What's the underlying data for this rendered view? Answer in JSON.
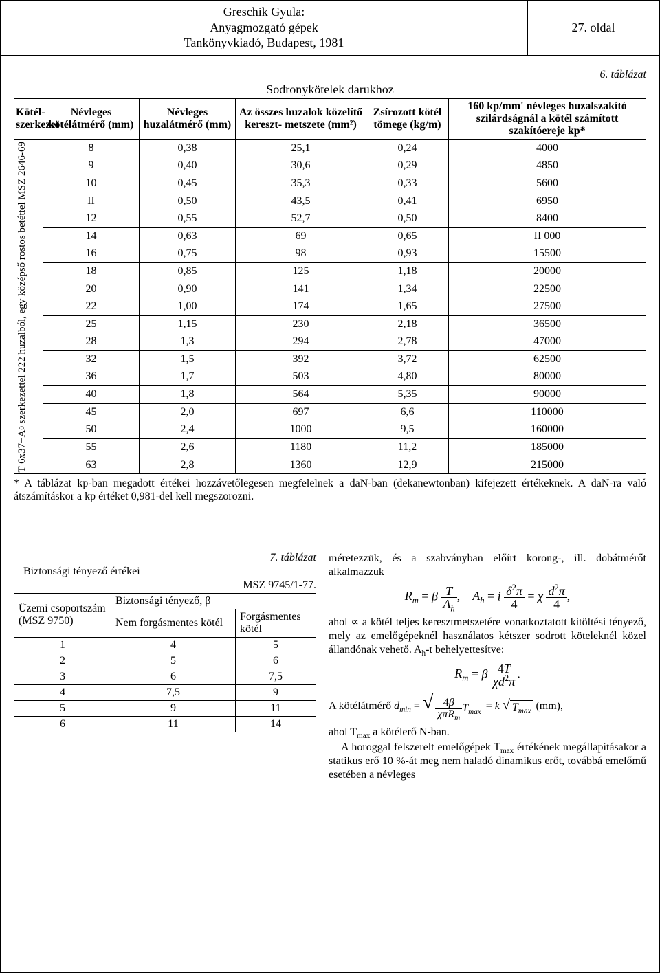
{
  "header": {
    "line1": "Greschik Gyula:",
    "line2": "Anyagmozgató gépek",
    "line3": "Tankönyvkiadó, Budapest, 1981",
    "page": "27. oldal"
  },
  "table6": {
    "label": "6. táblázat",
    "caption": "Sodronykötelek darukhoz",
    "cols": {
      "c0": "Kötél-szerkezet",
      "c1": "Névleges kötélátmérő (mm)",
      "c2": "Névleges huzalátmérő (mm)",
      "c3": "Az összes huzalok közelítő kereszt- metszete (mm²)",
      "c4": "Zsírozott kötél tömege (kg/m)",
      "c5": "160 kp/mm' névleges huzalszakító szilárdságnál a kötél számított szakítóereje kp*"
    },
    "side_label_1": "T 6x37+A",
    "side_label_sub": "0",
    "side_label_2": " szerkezettel 222 huzalból, egy középső rostos betéttel MSZ 2646-69",
    "groups": [
      [
        [
          "8",
          "0,38",
          "25,1",
          "0,24",
          "4000"
        ],
        [
          "9",
          "0,40",
          "30,6",
          "0,29",
          "4850"
        ],
        [
          "10",
          "0,45",
          "35,3",
          "0,33",
          "5600"
        ],
        [
          "II",
          "0,50",
          "43,5",
          "0,41",
          "6950"
        ],
        [
          "12",
          "0,55",
          "52,7",
          "0,50",
          "8400"
        ]
      ],
      [
        [
          "14",
          "0,63",
          "69",
          "0,65",
          "II 000"
        ],
        [
          "16",
          "0,75",
          "98",
          "0,93",
          "15500"
        ],
        [
          "18",
          "0,85",
          "125",
          "1,18",
          "20000"
        ],
        [
          "20",
          "0,90",
          "141",
          "1,34",
          "22500"
        ],
        [
          "22",
          "1,00",
          "174",
          "1,65",
          "27500"
        ]
      ],
      [
        [
          "25",
          "1,15",
          "230",
          "2,18",
          "36500"
        ],
        [
          "28",
          "1,3",
          "294",
          "2,78",
          "47000"
        ],
        [
          "32",
          "1,5",
          "392",
          "3,72",
          "62500"
        ],
        [
          "36",
          "1,7",
          "503",
          "4,80",
          "80000"
        ],
        [
          "40",
          "1,8",
          "564",
          "5,35",
          "90000"
        ]
      ],
      [
        [
          "45",
          "2,0",
          "697",
          "6,6",
          "110000"
        ],
        [
          "50",
          "2,4",
          "1000",
          "9,5",
          "160000"
        ],
        [
          "55",
          "2,6",
          "1180",
          "11,2",
          "185000"
        ],
        [
          "63",
          "2,8",
          "1360",
          "12,9",
          "215000"
        ]
      ]
    ],
    "note": "* A táblázat kp-ban megadott értékei hozzávetőlegesen megfelelnek a daN-ban (dekanewtonban) kifejezett értékeknek. A daN-ra való átszámításkor a kp értéket 0,981-del kell megszorozni."
  },
  "table7": {
    "label": "7. táblázat",
    "title": "Biztonsági tényező értékei",
    "std": "MSZ 9745/1-77.",
    "h_left": "Üzemi csoportszám (MSZ 9750)",
    "h_top": "Biztonsági tényező, β",
    "h_c1": "Nem forgásmentes kötél",
    "h_c2": "Forgásmentes kötél",
    "rows": [
      [
        "1",
        "4",
        "5"
      ],
      [
        "2",
        "5",
        "6"
      ],
      [
        "3",
        "6",
        "7,5"
      ],
      [
        "4",
        "7,5",
        "9"
      ],
      [
        "5",
        "9",
        "11"
      ],
      [
        "6",
        "11",
        "14"
      ]
    ]
  },
  "text": {
    "p1": "méretezzük, és a szabványban előírt korong-, ill. dobátmérőt alkalmazzuk",
    "p2_a": "ahol ",
    "p2_b": " a kötél teljes keresztmetszetére vonatkoztatott kitöltési tényező, mely az emelőgépeknél használatos kétszer sodrott köteleknél közel állandónak vehető. A",
    "p2_c": "-t behelyettesítve:",
    "p3_a": "A kötélátmérő ",
    "p3_b": "  (mm),",
    "p4": "ahol Tmax a kötélerő N-ban.",
    "p5": "A horoggal felszerelt emelőgépek Tmax értékének megállapításakor a statikus erő 10 %-át meg nem haladó dinamikus erőt, továbbá emelőmű esetében a névleges"
  },
  "math": {
    "Rm": "R",
    "m": "m",
    "beta": "β",
    "T": "T",
    "Ah": "A",
    "h": "h",
    "i": "i",
    "delta": "δ",
    "pi": "π",
    "four": "4",
    "chi": "χ",
    "d": "d",
    "eq": "=",
    "comma": ",",
    "dot": ".",
    "dmin": "d",
    "min": "min",
    "k": "k",
    "Tmax": "T",
    "max": "max",
    "alpha": "∝",
    "sup2": "2"
  }
}
